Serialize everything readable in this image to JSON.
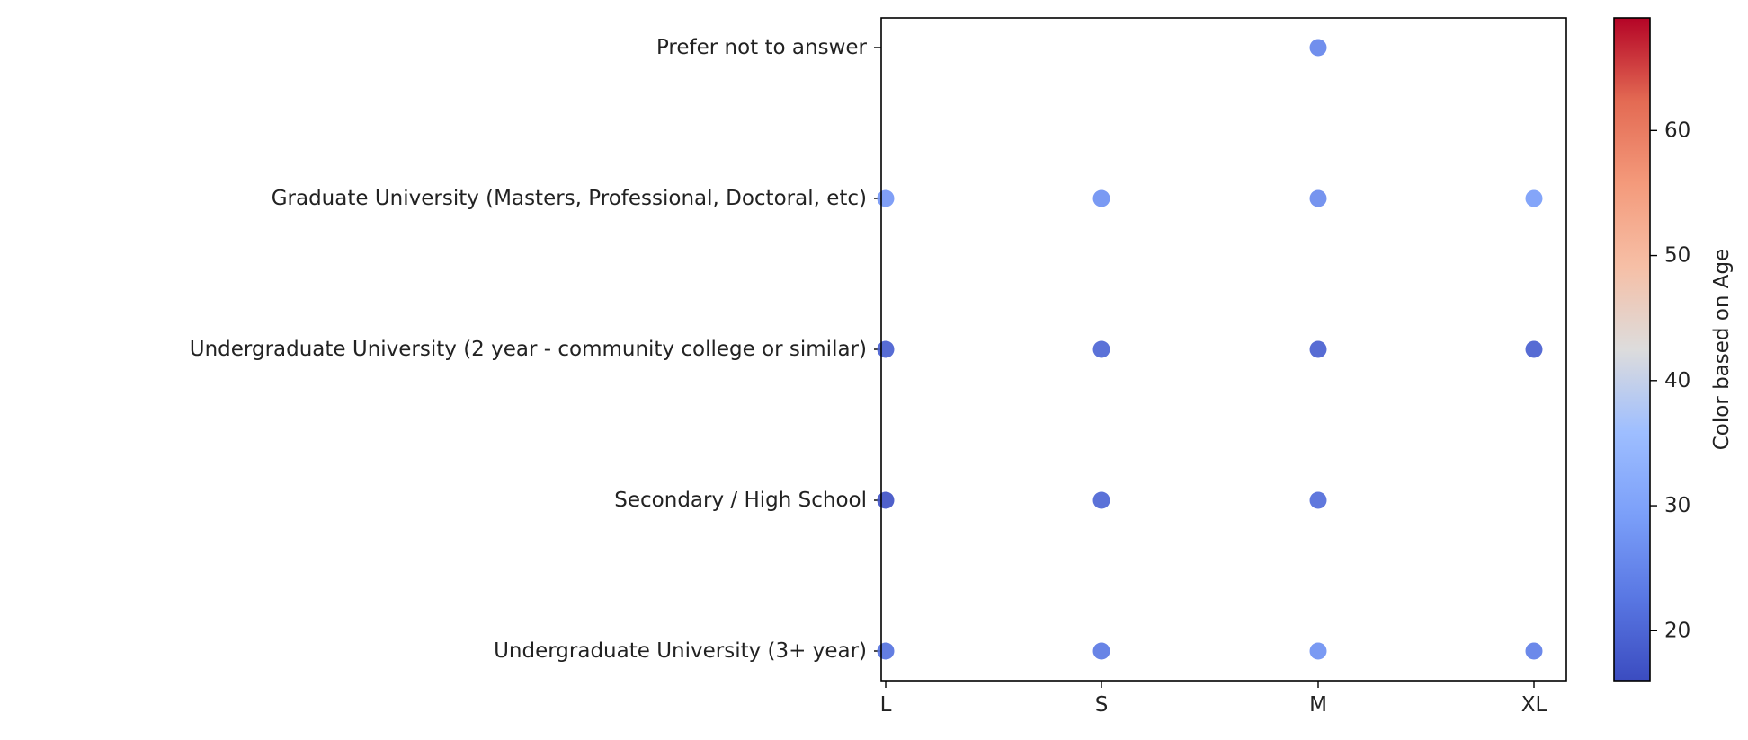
{
  "chart_data": {
    "type": "scatter",
    "title": "",
    "xlabel": "",
    "ylabel": "",
    "x_categories": [
      "L",
      "S",
      "M",
      "XL"
    ],
    "y_categories": [
      "Undergraduate University (3+ year)",
      "Secondary / High School",
      "Undergraduate University (2 year - community college or similar)",
      "Graduate University (Masters, Professional, Doctoral, etc)",
      "Prefer not to answer"
    ],
    "colorbar": {
      "label": "Color based on Age",
      "colormap": "coolwarm",
      "range": [
        16,
        69
      ],
      "ticks": [
        20,
        30,
        40,
        50,
        60
      ]
    },
    "points": [
      {
        "x": "M",
        "y": "Prefer not to answer",
        "age": 25
      },
      {
        "x": "L",
        "y": "Graduate University (Masters, Professional, Doctoral, etc)",
        "age": 28
      },
      {
        "x": "S",
        "y": "Graduate University (Masters, Professional, Doctoral, etc)",
        "age": 27
      },
      {
        "x": "M",
        "y": "Graduate University (Masters, Professional, Doctoral, etc)",
        "age": 26
      },
      {
        "x": "XL",
        "y": "Graduate University (Masters, Professional, Doctoral, etc)",
        "age": 29
      },
      {
        "x": "L",
        "y": "Undergraduate University (2 year - community college or similar)",
        "age": 19
      },
      {
        "x": "S",
        "y": "Undergraduate University (2 year - community college or similar)",
        "age": 20
      },
      {
        "x": "M",
        "y": "Undergraduate University (2 year - community college or similar)",
        "age": 19
      },
      {
        "x": "XL",
        "y": "Undergraduate University (2 year - community college or similar)",
        "age": 19
      },
      {
        "x": "L",
        "y": "Secondary / High School",
        "age": 17
      },
      {
        "x": "S",
        "y": "Secondary / High School",
        "age": 20
      },
      {
        "x": "M",
        "y": "Secondary / High School",
        "age": 21
      },
      {
        "x": "L",
        "y": "Undergraduate University (3+ year)",
        "age": 22
      },
      {
        "x": "S",
        "y": "Undergraduate University (3+ year)",
        "age": 23
      },
      {
        "x": "M",
        "y": "Undergraduate University (3+ year)",
        "age": 27
      },
      {
        "x": "XL",
        "y": "Undergraduate University (3+ year)",
        "age": 24
      }
    ]
  }
}
